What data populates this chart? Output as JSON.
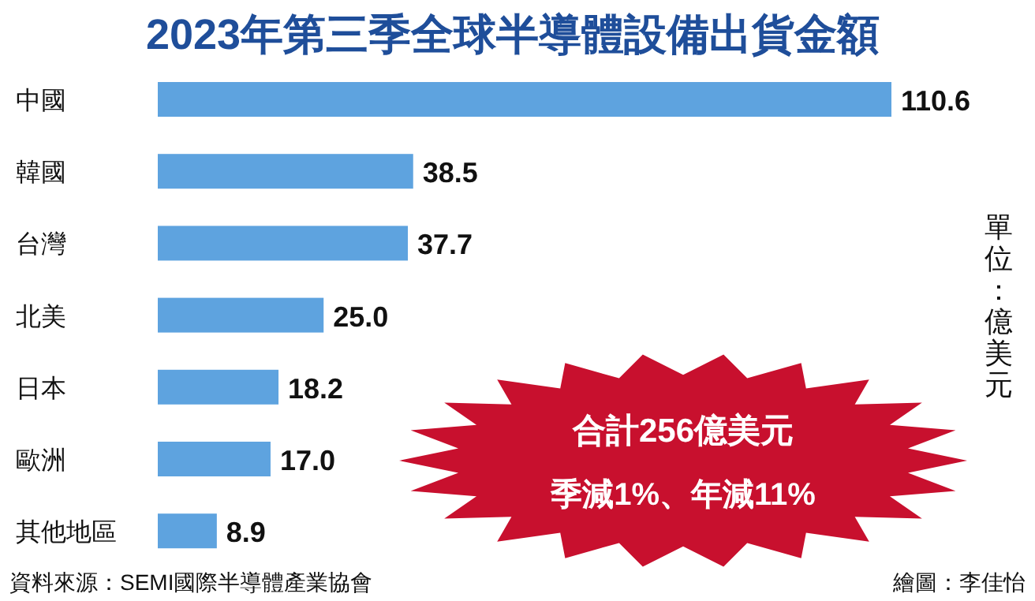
{
  "chart_data": {
    "type": "bar",
    "orientation": "horizontal",
    "title": "2023年第三季全球半導體設備出貨金額",
    "categories": [
      "中國",
      "韓國",
      "台灣",
      "北美",
      "日本",
      "歐洲",
      "其他地區"
    ],
    "values": [
      110.6,
      38.5,
      37.7,
      25.0,
      18.2,
      17.0,
      8.9
    ],
    "value_labels": [
      "110.6",
      "38.5",
      "37.7",
      "25.0",
      "18.2",
      "17.0",
      "8.9"
    ],
    "color": "#5ea3df",
    "annotations": [
      "單位：億美元",
      "合計256億美元",
      "季減1%、年減11%",
      "資料來源：SEMI國際半導體產業協會",
      "繪圖：李佳怡"
    ]
  }
}
